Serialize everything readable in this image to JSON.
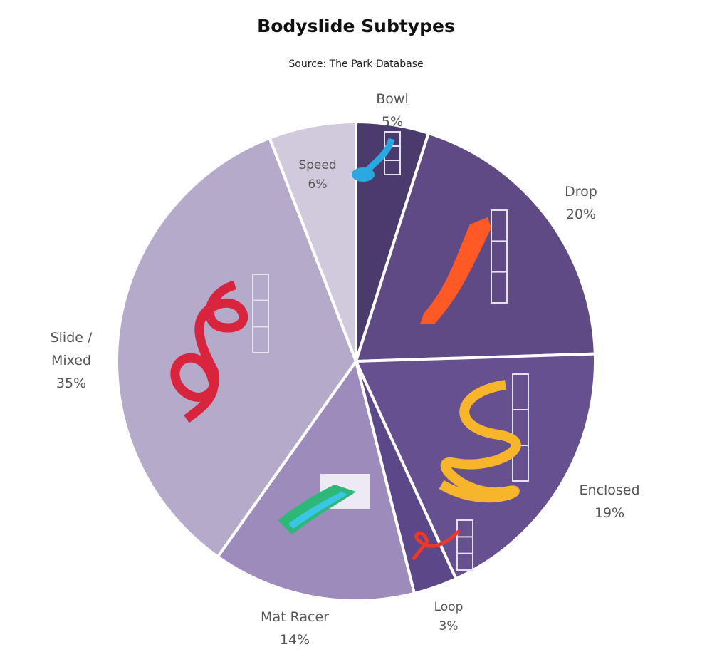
{
  "chart_data": {
    "type": "pie",
    "title": "Bodyslide Subtypes",
    "subtitle": "Source: The Park Database",
    "start": "top",
    "direction": "clockwise",
    "slices": [
      {
        "label": "Bowl",
        "value": 5,
        "display": "5%",
        "color": "#4b3b6c"
      },
      {
        "label": "Drop",
        "value": 20,
        "display": "20%",
        "color": "#5f4a86"
      },
      {
        "label": "Enclosed",
        "value": 19,
        "display": "19%",
        "color": "#665090"
      },
      {
        "label": "Loop",
        "value": 3,
        "display": "3%",
        "color": "#5c4888"
      },
      {
        "label": "Mat Racer",
        "value": 14,
        "display": "14%",
        "color": "#9d8cbb"
      },
      {
        "label": "Slide / Mixed",
        "value": 35,
        "display": "35%",
        "color": "#b6aaca"
      },
      {
        "label": "Speed",
        "value": 6,
        "display": "6%",
        "color": "#d1c9dc"
      }
    ],
    "illustrations": [
      "bowl-slide-icon",
      "drop-slide-icon",
      "enclosed-spiral-slide-icon",
      "loop-slide-icon",
      "mat-racer-slide-icon",
      "mixed-spiral-slide-icon"
    ]
  }
}
